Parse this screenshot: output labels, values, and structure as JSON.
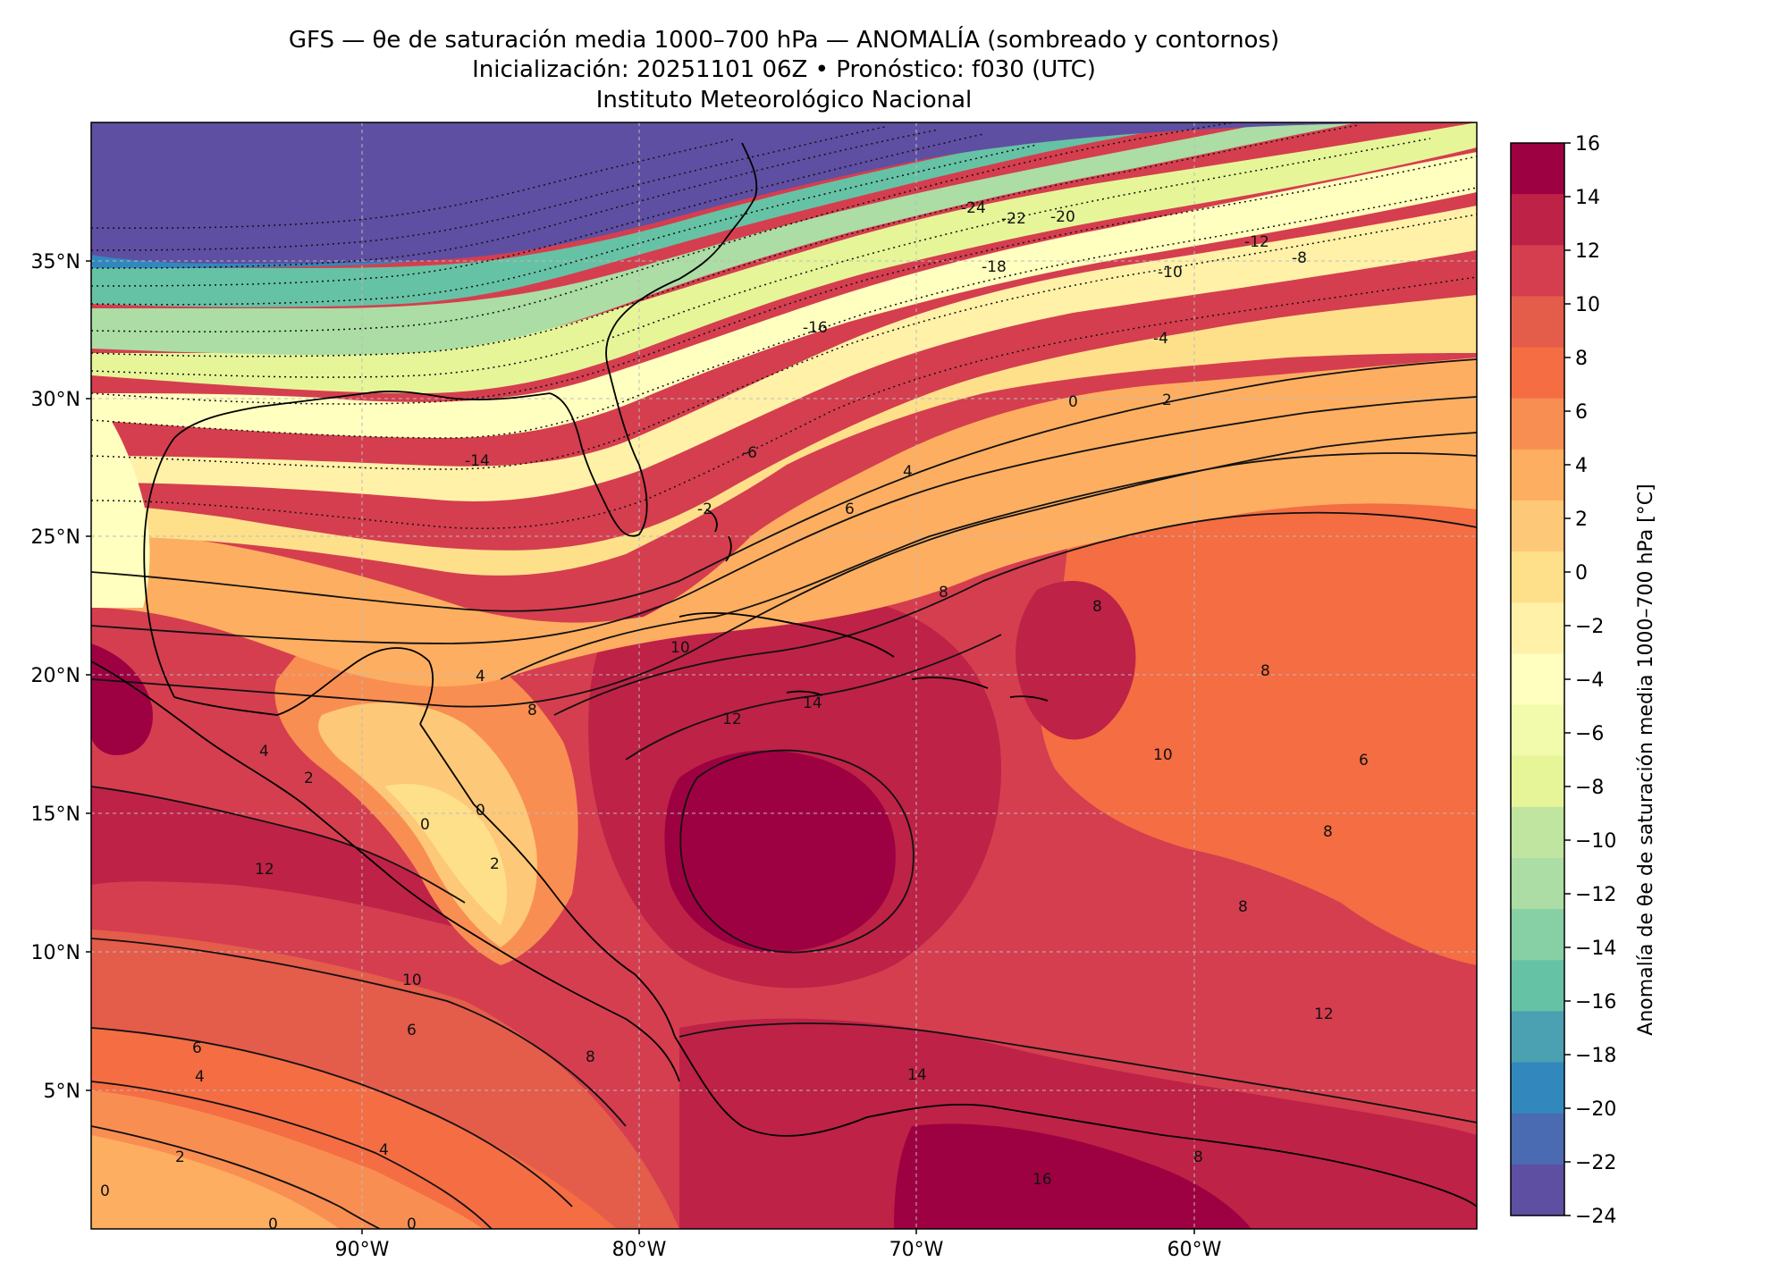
{
  "header": {
    "title_line1": "GFS — θe de saturación media 1000–700 hPa — ANOMALÍA (sombreado y contornos)",
    "title_line2": "Inicialización: 20251101 06Z   •   Pronóstico: f030 (UTC)",
    "title_line3": "Instituto Meteorológico Nacional"
  },
  "map": {
    "lat_ticks": [
      "35°N",
      "30°N",
      "25°N",
      "20°N",
      "15°N",
      "10°N",
      "5°N"
    ],
    "lon_ticks": [
      "90°W",
      "80°W",
      "70°W",
      "60°W"
    ],
    "grid": true,
    "colormap": "Spectral_r"
  },
  "colorbar": {
    "label": "Anomalía de θe de saturación media 1000–700 hPa [°C]",
    "ticks": [
      "16",
      "14",
      "12",
      "10",
      "8",
      "6",
      "4",
      "2",
      "0",
      "−2",
      "−4",
      "−6",
      "−8",
      "−10",
      "−12",
      "−14",
      "−16",
      "−18",
      "−20",
      "−22",
      "−24"
    ],
    "colors": [
      "#9e0142",
      "#be2247",
      "#d53e4f",
      "#e45c4a",
      "#f46d43",
      "#f98e52",
      "#fdae61",
      "#fdc877",
      "#fee08b",
      "#fff1a8",
      "#ffffbf",
      "#f2faac",
      "#e6f598",
      "#c0e5a0",
      "#abdda4",
      "#87cfa4",
      "#66c2a5",
      "#4ba0b1",
      "#3288bd",
      "#4a6ab1",
      "#5e4fa2"
    ]
  },
  "contour_labels": [
    "-24",
    "-22",
    "-20",
    "-18",
    "-16",
    "-14",
    "-12",
    "-10",
    "-8",
    "-6",
    "-4",
    "-2",
    "0",
    "2",
    "4",
    "6",
    "8",
    "10",
    "12",
    "14",
    "16"
  ]
}
